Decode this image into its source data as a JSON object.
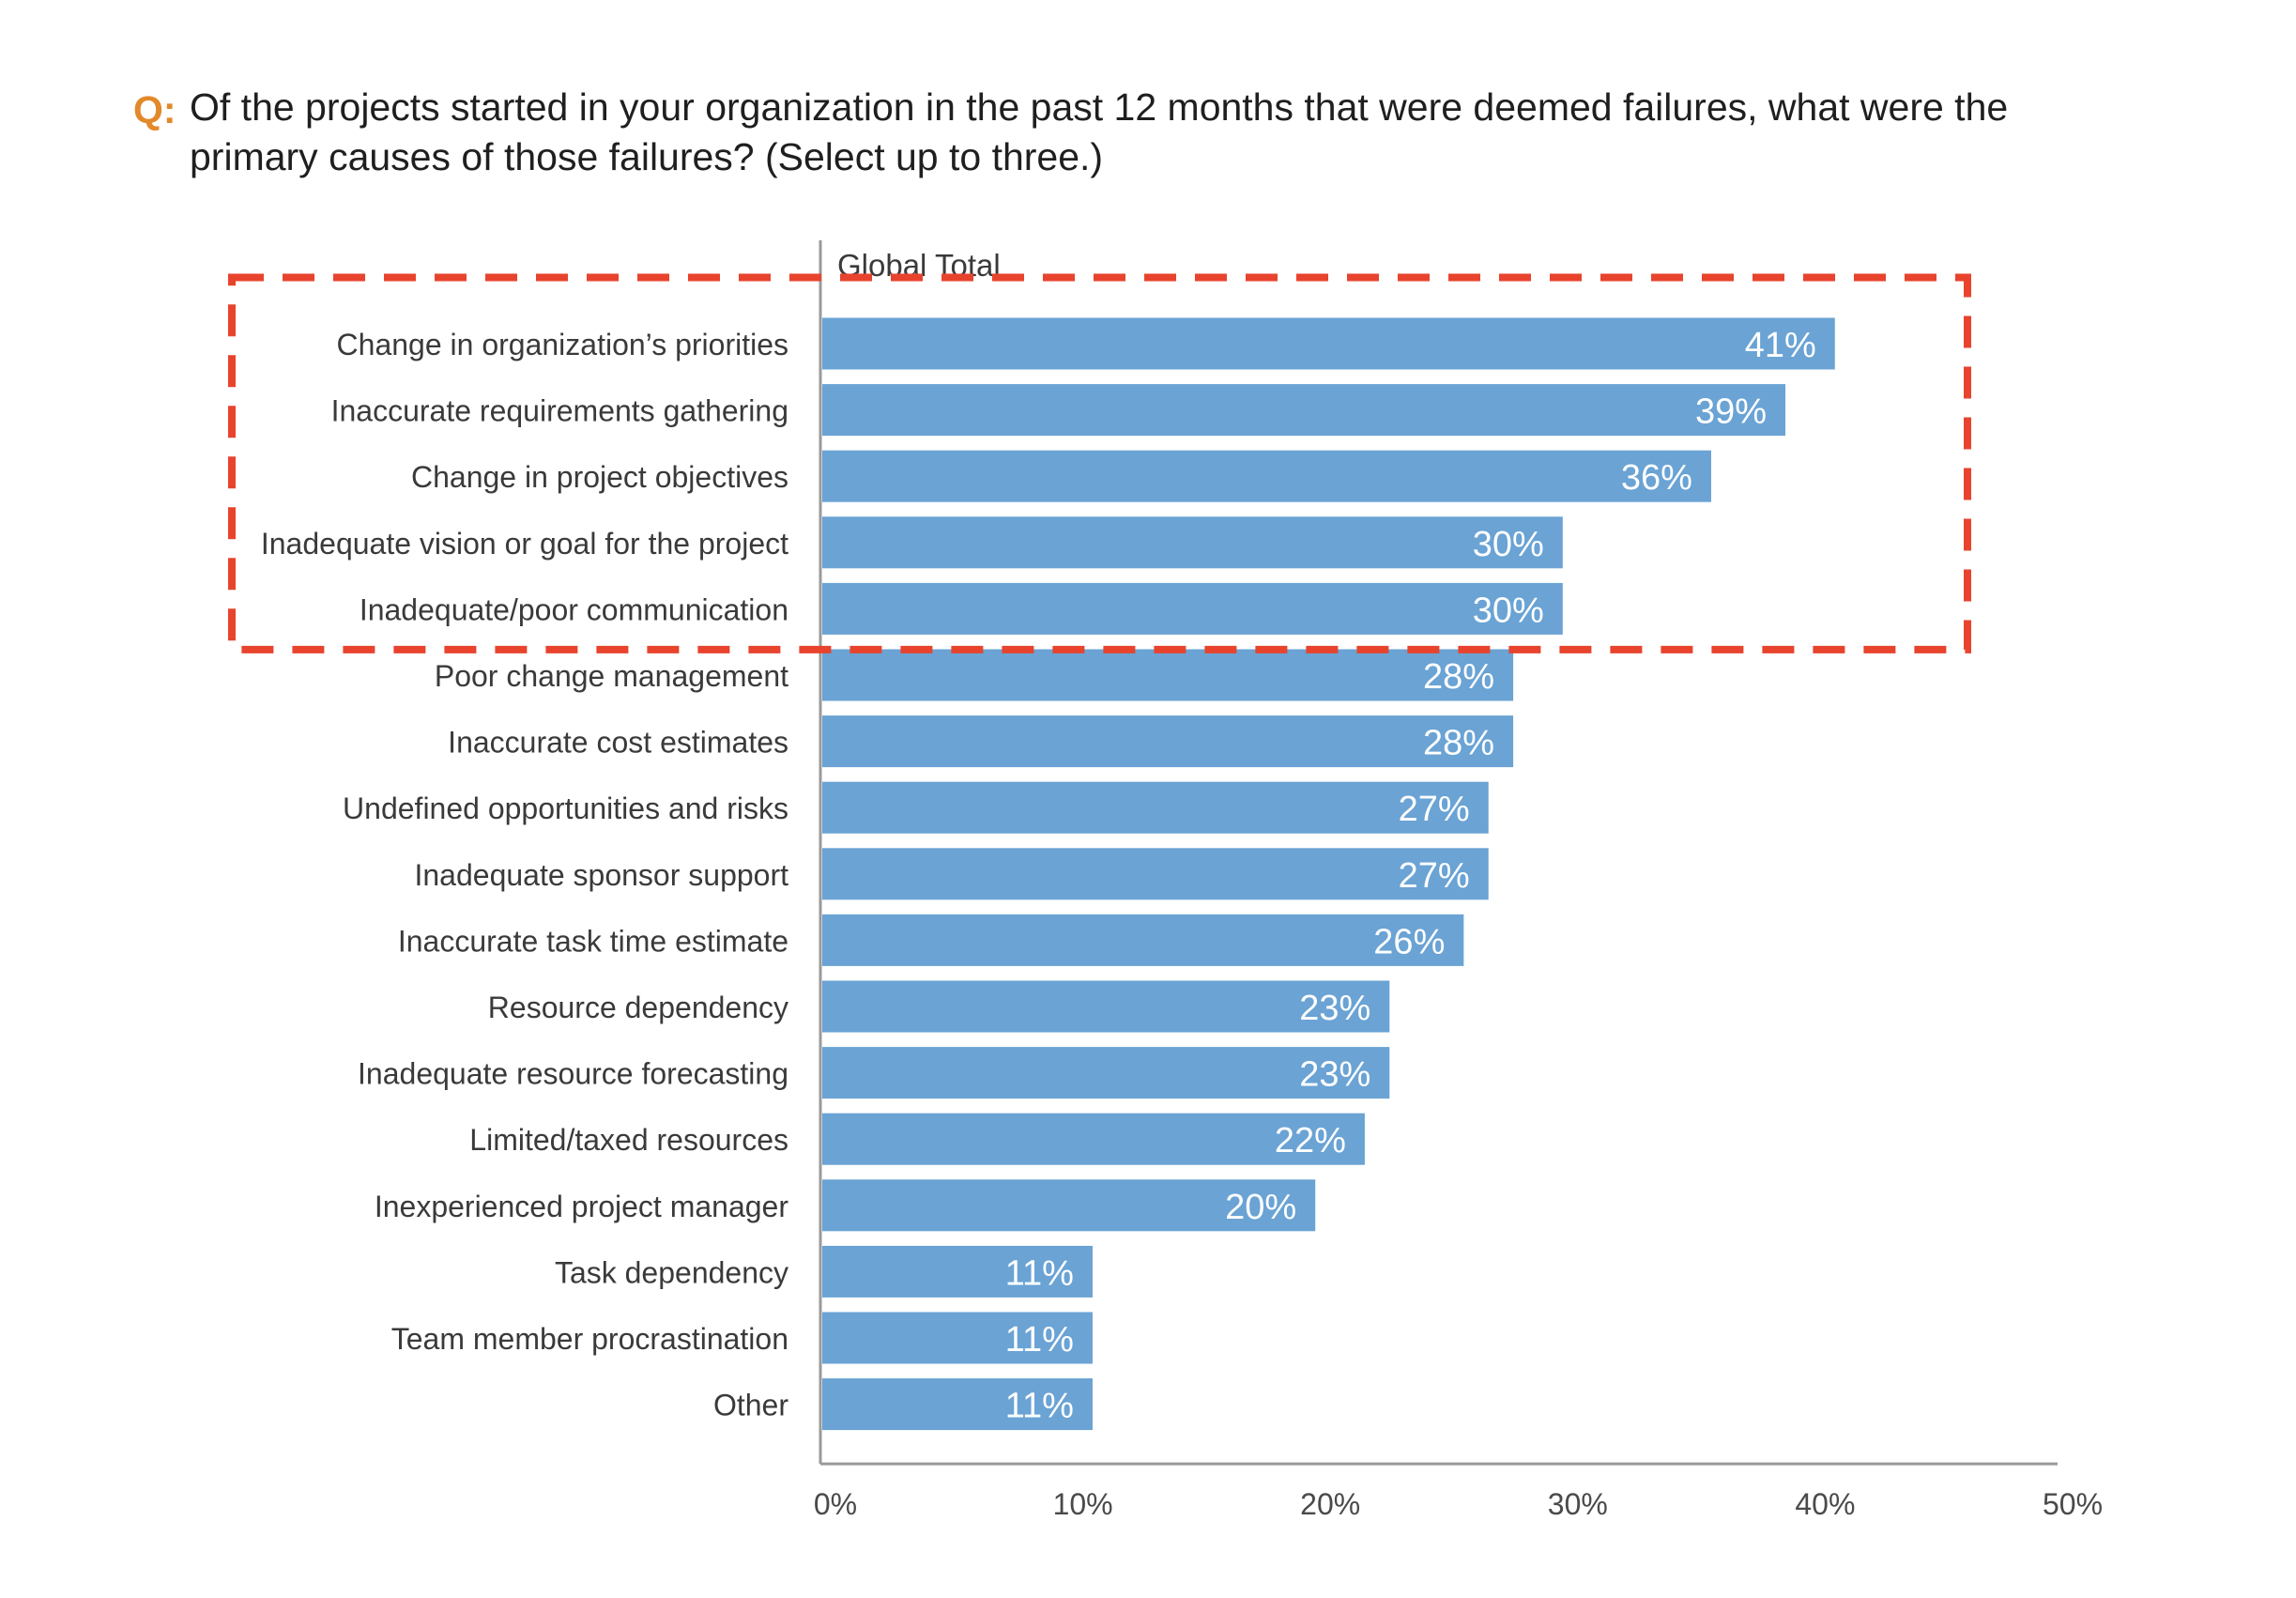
{
  "question": {
    "prefix": "Q:",
    "text": "Of the projects started in your organization in the past 12 months that were deemed failures, what were the primary causes of those failures? (Select up to three.)"
  },
  "colors": {
    "bar": "#6aa3d4",
    "highlight": "#e8432d",
    "prefix": "#e28a2b",
    "axis": "#9a9a9a"
  },
  "chart_data": {
    "type": "bar",
    "orientation": "horizontal",
    "series": [
      {
        "name": "Global Total",
        "values": [
          41,
          39,
          36,
          30,
          30,
          28,
          28,
          27,
          27,
          26,
          23,
          23,
          22,
          20,
          11,
          11,
          11
        ]
      }
    ],
    "categories": [
      "Change in organization’s priorities",
      "Inaccurate requirements gathering",
      "Change in project objectives",
      "Inadequate vision or goal for the project",
      "Inadequate/poor communication",
      "Poor change management",
      "Inaccurate cost estimates",
      "Undefined opportunities and risks",
      "Inadequate sponsor support",
      "Inaccurate task time estimate",
      "Resource dependency",
      "Inadequate resource forecasting",
      "Limited/taxed resources",
      "Inexperienced project manager",
      "Task dependency",
      "Team member procrastination",
      "Other"
    ],
    "data_labels": [
      "41%",
      "39%",
      "36%",
      "30%",
      "30%",
      "28%",
      "28%",
      "27%",
      "27%",
      "26%",
      "23%",
      "23%",
      "22%",
      "20%",
      "11%",
      "11%",
      "11%"
    ],
    "xlim": [
      0,
      50
    ],
    "xticks": [
      0,
      10,
      20,
      30,
      40,
      50
    ],
    "xtick_labels": [
      "0%",
      "10%",
      "20%",
      "30%",
      "40%",
      "50%"
    ],
    "title": "",
    "xlabel": "",
    "ylabel": "",
    "grid": false,
    "highlighted_categories": 5
  }
}
